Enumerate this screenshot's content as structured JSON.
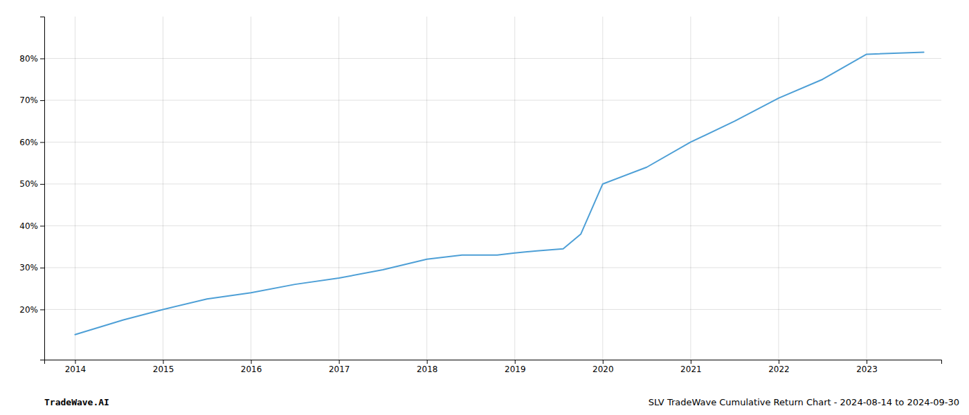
{
  "chart_data": {
    "type": "line",
    "x": [
      2014.0,
      2014.55,
      2015.0,
      2015.5,
      2016.0,
      2016.5,
      2017.0,
      2017.5,
      2018.0,
      2018.4,
      2018.8,
      2019.0,
      2019.25,
      2019.55,
      2019.75,
      2020.0,
      2020.5,
      2021.0,
      2021.5,
      2022.0,
      2022.5,
      2023.0,
      2023.65
    ],
    "values": [
      14.0,
      17.5,
      20.0,
      22.5,
      24.0,
      26.0,
      27.5,
      29.5,
      32.0,
      33.0,
      33.0,
      33.5,
      34.0,
      34.5,
      38.0,
      50.0,
      54.0,
      60.0,
      65.0,
      70.5,
      75.0,
      81.0,
      81.5
    ],
    "color": "#4d9fd6",
    "xlim": [
      2013.65,
      2023.85
    ],
    "ylim": [
      8,
      90
    ],
    "xticks": [
      2014,
      2015,
      2016,
      2017,
      2018,
      2019,
      2020,
      2021,
      2022,
      2023
    ],
    "yticks": [
      {
        "value": 20,
        "label": "20%"
      },
      {
        "value": 30,
        "label": "30%"
      },
      {
        "value": 40,
        "label": "40%"
      },
      {
        "value": 50,
        "label": "50%"
      },
      {
        "value": 60,
        "label": "60%"
      },
      {
        "value": 70,
        "label": "70%"
      },
      {
        "value": 80,
        "label": "80%"
      }
    ],
    "grid": true,
    "annotations": [
      "TradeWave.AI",
      "SLV TradeWave Cumulative Return Chart - 2024-08-14 to 2024-09-30"
    ]
  }
}
